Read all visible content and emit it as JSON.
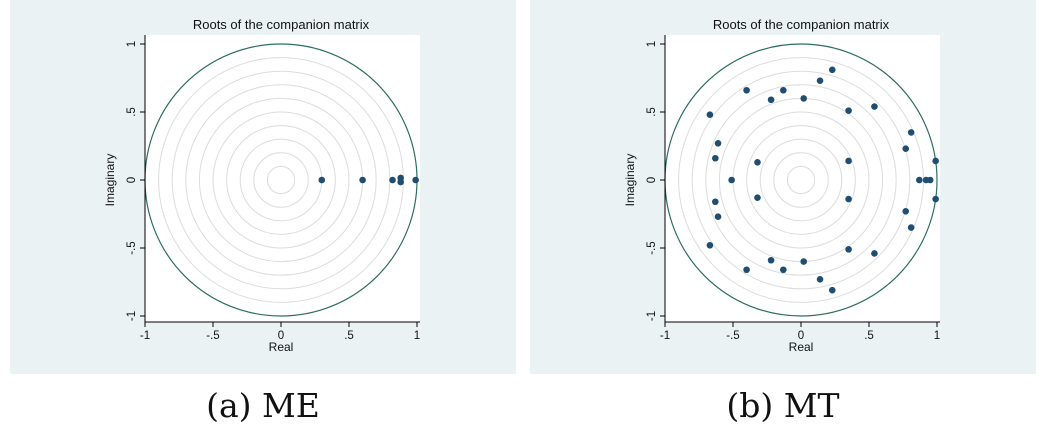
{
  "panels": [
    {
      "caption": "(a) ME",
      "chart_data": {
        "type": "scatter",
        "title": "Roots of the companion matrix",
        "xlabel": "Real",
        "ylabel": "Imaginary",
        "xlim": [
          -1,
          1
        ],
        "ylim": [
          -1,
          1
        ],
        "xticks": [
          "-1",
          "-.5",
          "0",
          ".5",
          "1"
        ],
        "yticks": [
          "-1",
          "-.5",
          "0",
          ".5",
          "1"
        ],
        "grid": "concentric circles",
        "unit_circle": true,
        "points": [
          [
            0.3,
            0.0
          ],
          [
            0.6,
            0.0
          ],
          [
            0.82,
            0.0
          ],
          [
            0.88,
            0.015
          ],
          [
            0.88,
            -0.015
          ],
          [
            0.99,
            0.0
          ]
        ]
      }
    },
    {
      "caption": "(b) MT",
      "chart_data": {
        "type": "scatter",
        "title": "Roots of the companion matrix",
        "xlabel": "Real",
        "ylabel": "Imaginary",
        "xlim": [
          -1,
          1
        ],
        "ylim": [
          -1,
          1
        ],
        "xticks": [
          "-1",
          "-.5",
          "0",
          ".5",
          "1"
        ],
        "yticks": [
          "-1",
          "-.5",
          "0",
          ".5",
          "1"
        ],
        "grid": "concentric circles",
        "unit_circle": true,
        "points": [
          [
            -0.67,
            0.48
          ],
          [
            -0.67,
            -0.48
          ],
          [
            -0.4,
            0.66
          ],
          [
            -0.4,
            -0.66
          ],
          [
            -0.22,
            0.59
          ],
          [
            -0.22,
            -0.59
          ],
          [
            -0.13,
            0.66
          ],
          [
            -0.13,
            -0.66
          ],
          [
            0.14,
            0.73
          ],
          [
            0.14,
            -0.73
          ],
          [
            0.23,
            0.81
          ],
          [
            0.23,
            -0.81
          ],
          [
            0.02,
            0.6
          ],
          [
            0.02,
            -0.6
          ],
          [
            0.35,
            0.51
          ],
          [
            0.35,
            -0.51
          ],
          [
            0.54,
            0.54
          ],
          [
            0.54,
            -0.54
          ],
          [
            -0.61,
            0.27
          ],
          [
            -0.61,
            -0.27
          ],
          [
            -0.63,
            0.16
          ],
          [
            -0.63,
            -0.16
          ],
          [
            -0.51,
            0.0
          ],
          [
            -0.32,
            0.13
          ],
          [
            -0.32,
            -0.13
          ],
          [
            0.35,
            0.14
          ],
          [
            0.35,
            -0.14
          ],
          [
            0.77,
            0.23
          ],
          [
            0.77,
            -0.23
          ],
          [
            0.81,
            0.35
          ],
          [
            0.81,
            -0.35
          ],
          [
            0.87,
            0.0
          ],
          [
            0.92,
            0.0
          ],
          [
            0.95,
            0.0
          ],
          [
            0.99,
            0.14
          ],
          [
            0.99,
            -0.14
          ]
        ]
      }
    }
  ],
  "colors": {
    "panel_bg": "#eaf2f3",
    "plot_bg": "#ffffff",
    "unit_circle": "#2d6e5e",
    "grid": "#dcdcdc",
    "marker": "#1f4e72",
    "text": "#111111"
  }
}
